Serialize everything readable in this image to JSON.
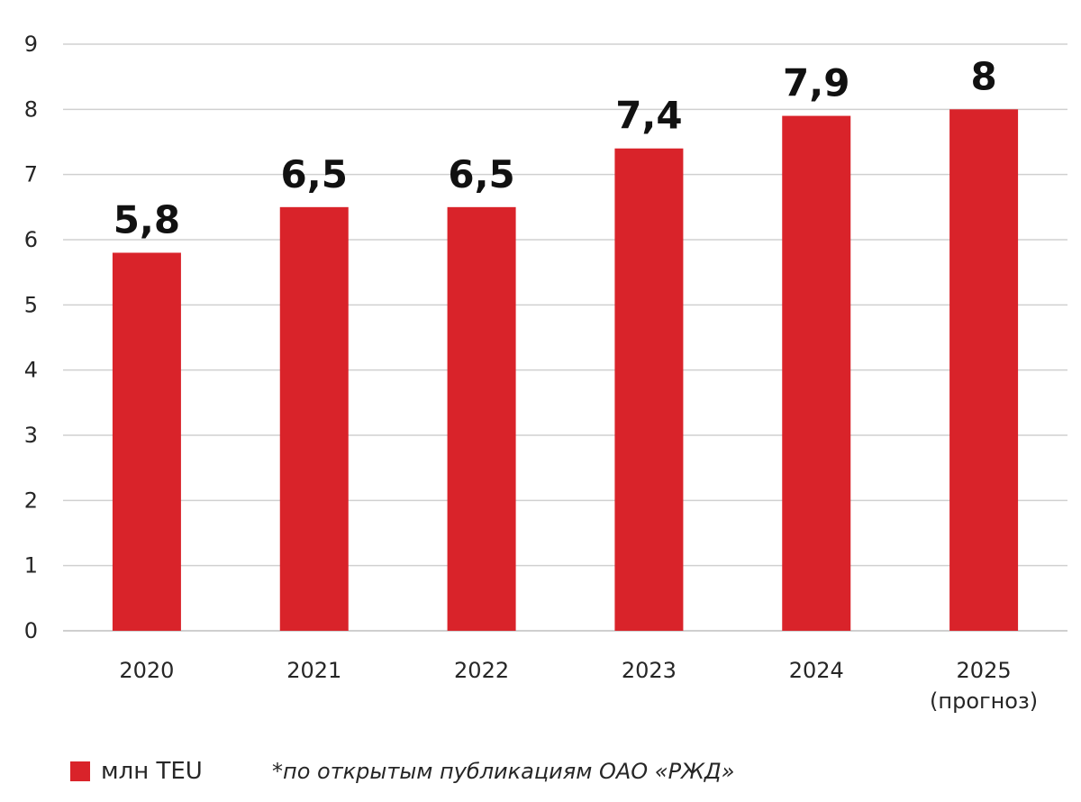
{
  "chart_data": {
    "type": "bar",
    "categories": [
      "2020",
      "2021",
      "2022",
      "2023",
      "2024",
      "2025"
    ],
    "category_sublabels": [
      "",
      "",
      "",
      "",
      "",
      "(прогноз)"
    ],
    "series": [
      {
        "name": "млн TEU",
        "values": [
          5.8,
          6.5,
          6.5,
          7.4,
          7.9,
          8
        ],
        "value_labels": [
          "5,8",
          "6,5",
          "6,5",
          "7,4",
          "7,9",
          "8"
        ],
        "color": "#d9232a"
      }
    ],
    "y_ticks": [
      0,
      1,
      2,
      3,
      4,
      5,
      6,
      7,
      8,
      9
    ],
    "ylim": [
      0,
      9
    ],
    "grid": true,
    "title": "",
    "xlabel": "",
    "ylabel": "",
    "legend_position": "bottom-left"
  },
  "legend": {
    "label": "млн TEU"
  },
  "footnote": "*по открытым публикациям ОАО «РЖД»"
}
